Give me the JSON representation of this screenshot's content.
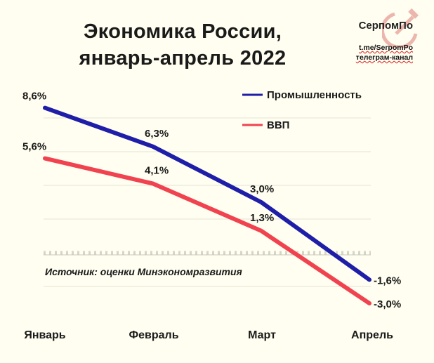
{
  "header": {
    "title_line1": "Экономика России,",
    "title_line2": "январь-апрель 2022"
  },
  "watermark": {
    "name": "СерпомПо",
    "link": "t.me/SerpomPo",
    "subtitle": "телеграм-канал",
    "emblem": "hammer-sickle-icon"
  },
  "chart_data": {
    "type": "line",
    "title": "Экономика России, январь-апрель 2022",
    "categories": [
      "Январь",
      "Февраль",
      "Март",
      "Апрель"
    ],
    "series": [
      {
        "name": "Промышленность",
        "color": "#1e1ea8",
        "values": [
          8.6,
          6.3,
          3.0,
          -1.6
        ],
        "labels": [
          "8,6%",
          "6,3%",
          "3,0%",
          "-1,6%"
        ]
      },
      {
        "name": "ВВП",
        "color": "#f0434f",
        "values": [
          5.6,
          4.1,
          1.3,
          -3.0
        ],
        "labels": [
          "5,6%",
          "4,1%",
          "1,3%",
          "-3,0%"
        ]
      }
    ],
    "ylim": [
      -4,
      10
    ],
    "gridlines": [
      2,
      4,
      6,
      8
    ],
    "grid": true,
    "legend_position": "top-right",
    "annotation": "Источник: оценки Минэкономразвития"
  }
}
